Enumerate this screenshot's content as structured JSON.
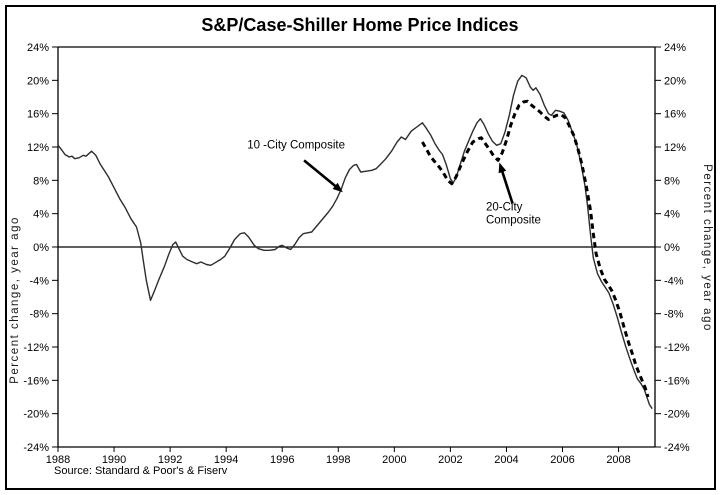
{
  "title": "S&P/Case-Shiller Home Price Indices",
  "chart_data": {
    "type": "line",
    "title": "S&P/Case-Shiller Home Price Indices",
    "ylabel_left": "Percent change, year ago",
    "ylabel_right": "Percent change, year ago",
    "source_note": "Source: Standard & Poor's & Fiserv",
    "x_range": [
      1988,
      2009.3
    ],
    "y_range": [
      -24,
      24
    ],
    "x_ticks": [
      1988,
      1990,
      1992,
      1994,
      1996,
      1998,
      2000,
      2002,
      2004,
      2006,
      2008
    ],
    "y_ticks": [
      24,
      20,
      16,
      12,
      8,
      4,
      0,
      -4,
      -8,
      -12,
      -16,
      -20,
      -24
    ],
    "y_tick_suffix": "%",
    "grid": false,
    "zero_line": true,
    "legend_position": "none",
    "line_color": "#000000",
    "series": [
      {
        "name": "10-City Composite",
        "style": "solid",
        "points": [
          [
            1988.0,
            12.2
          ],
          [
            1988.1,
            11.8
          ],
          [
            1988.25,
            11.1
          ],
          [
            1988.4,
            10.8
          ],
          [
            1988.5,
            10.9
          ],
          [
            1988.6,
            10.6
          ],
          [
            1988.75,
            10.7
          ],
          [
            1988.9,
            11.0
          ],
          [
            1989.0,
            10.9
          ],
          [
            1989.1,
            11.2
          ],
          [
            1989.2,
            11.5
          ],
          [
            1989.35,
            11.0
          ],
          [
            1989.5,
            10.0
          ],
          [
            1989.65,
            9.2
          ],
          [
            1989.8,
            8.4
          ],
          [
            1990.0,
            7.1
          ],
          [
            1990.2,
            5.8
          ],
          [
            1990.4,
            4.7
          ],
          [
            1990.6,
            3.4
          ],
          [
            1990.8,
            2.4
          ],
          [
            1990.95,
            0.5
          ],
          [
            1991.05,
            -1.8
          ],
          [
            1991.15,
            -4.0
          ],
          [
            1991.3,
            -6.4
          ],
          [
            1991.45,
            -5.2
          ],
          [
            1991.6,
            -3.9
          ],
          [
            1991.8,
            -2.3
          ],
          [
            1991.95,
            -0.9
          ],
          [
            1992.1,
            0.3
          ],
          [
            1992.2,
            0.6
          ],
          [
            1992.3,
            -0.1
          ],
          [
            1992.45,
            -1.1
          ],
          [
            1992.6,
            -1.5
          ],
          [
            1992.8,
            -1.8
          ],
          [
            1992.95,
            -2.0
          ],
          [
            1993.1,
            -1.8
          ],
          [
            1993.3,
            -2.1
          ],
          [
            1993.45,
            -2.2
          ],
          [
            1993.6,
            -1.9
          ],
          [
            1993.8,
            -1.5
          ],
          [
            1993.95,
            -1.1
          ],
          [
            1994.1,
            -0.3
          ],
          [
            1994.3,
            0.9
          ],
          [
            1994.5,
            1.6
          ],
          [
            1994.65,
            1.7
          ],
          [
            1994.8,
            1.2
          ],
          [
            1995.0,
            0.2
          ],
          [
            1995.15,
            -0.2
          ],
          [
            1995.35,
            -0.4
          ],
          [
            1995.55,
            -0.4
          ],
          [
            1995.75,
            -0.3
          ],
          [
            1995.9,
            0.1
          ],
          [
            1996.0,
            0.2
          ],
          [
            1996.15,
            -0.1
          ],
          [
            1996.3,
            -0.3
          ],
          [
            1996.45,
            0.3
          ],
          [
            1996.6,
            1.1
          ],
          [
            1996.75,
            1.6
          ],
          [
            1996.9,
            1.7
          ],
          [
            1997.05,
            1.8
          ],
          [
            1997.2,
            2.4
          ],
          [
            1997.35,
            3.0
          ],
          [
            1997.5,
            3.6
          ],
          [
            1997.65,
            4.2
          ],
          [
            1997.8,
            4.9
          ],
          [
            1997.95,
            5.8
          ],
          [
            1998.1,
            6.9
          ],
          [
            1998.25,
            8.3
          ],
          [
            1998.4,
            9.3
          ],
          [
            1998.55,
            9.8
          ],
          [
            1998.65,
            9.9
          ],
          [
            1998.8,
            9.0
          ],
          [
            1999.0,
            9.1
          ],
          [
            1999.2,
            9.2
          ],
          [
            1999.35,
            9.4
          ],
          [
            1999.5,
            9.9
          ],
          [
            1999.7,
            10.6
          ],
          [
            1999.9,
            11.5
          ],
          [
            2000.1,
            12.6
          ],
          [
            2000.25,
            13.2
          ],
          [
            2000.4,
            12.9
          ],
          [
            2000.6,
            13.9
          ],
          [
            2000.8,
            14.4
          ],
          [
            2001.0,
            14.9
          ],
          [
            2001.15,
            14.2
          ],
          [
            2001.3,
            13.4
          ],
          [
            2001.45,
            12.4
          ],
          [
            2001.6,
            11.6
          ],
          [
            2001.72,
            11.1
          ],
          [
            2001.85,
            9.9
          ],
          [
            2002.0,
            8.2
          ],
          [
            2002.1,
            7.7
          ],
          [
            2002.2,
            8.3
          ],
          [
            2002.35,
            9.9
          ],
          [
            2002.5,
            11.5
          ],
          [
            2002.65,
            12.7
          ],
          [
            2002.8,
            13.9
          ],
          [
            2002.95,
            14.9
          ],
          [
            2003.07,
            15.4
          ],
          [
            2003.2,
            14.7
          ],
          [
            2003.35,
            13.6
          ],
          [
            2003.5,
            12.7
          ],
          [
            2003.65,
            12.2
          ],
          [
            2003.8,
            12.4
          ],
          [
            2003.95,
            13.8
          ],
          [
            2004.1,
            15.8
          ],
          [
            2004.25,
            18.2
          ],
          [
            2004.4,
            19.9
          ],
          [
            2004.55,
            20.6
          ],
          [
            2004.7,
            20.3
          ],
          [
            2004.85,
            19.2
          ],
          [
            2004.95,
            18.8
          ],
          [
            2005.05,
            19.1
          ],
          [
            2005.2,
            18.3
          ],
          [
            2005.35,
            17.0
          ],
          [
            2005.5,
            16.0
          ],
          [
            2005.6,
            15.8
          ],
          [
            2005.75,
            16.4
          ],
          [
            2005.9,
            16.3
          ],
          [
            2006.05,
            16.1
          ],
          [
            2006.2,
            15.2
          ],
          [
            2006.35,
            13.8
          ],
          [
            2006.5,
            12.4
          ],
          [
            2006.65,
            10.2
          ],
          [
            2006.8,
            7.4
          ],
          [
            2006.9,
            4.8
          ],
          [
            2007.0,
            1.5
          ],
          [
            2007.1,
            -1.3
          ],
          [
            2007.25,
            -3.2
          ],
          [
            2007.4,
            -4.2
          ],
          [
            2007.5,
            -4.7
          ],
          [
            2007.65,
            -5.5
          ],
          [
            2007.8,
            -6.8
          ],
          [
            2007.95,
            -8.4
          ],
          [
            2008.1,
            -10.2
          ],
          [
            2008.25,
            -11.9
          ],
          [
            2008.4,
            -13.4
          ],
          [
            2008.55,
            -14.8
          ],
          [
            2008.67,
            -15.8
          ],
          [
            2008.8,
            -16.4
          ],
          [
            2008.92,
            -17.1
          ],
          [
            2009.0,
            -17.9
          ],
          [
            2009.1,
            -18.9
          ],
          [
            2009.2,
            -19.4
          ]
        ]
      },
      {
        "name": "20-City Composite",
        "style": "dashed",
        "points": [
          [
            2001.0,
            12.6
          ],
          [
            2001.15,
            11.7
          ],
          [
            2001.3,
            10.8
          ],
          [
            2001.45,
            10.2
          ],
          [
            2001.6,
            9.6
          ],
          [
            2001.75,
            8.9
          ],
          [
            2001.9,
            8.0
          ],
          [
            2002.05,
            7.6
          ],
          [
            2002.2,
            8.4
          ],
          [
            2002.4,
            10.0
          ],
          [
            2002.6,
            11.4
          ],
          [
            2002.8,
            12.6
          ],
          [
            2003.0,
            13.0
          ],
          [
            2003.1,
            13.1
          ],
          [
            2003.25,
            12.4
          ],
          [
            2003.4,
            11.7
          ],
          [
            2003.55,
            10.9
          ],
          [
            2003.7,
            10.4
          ],
          [
            2003.85,
            11.3
          ],
          [
            2004.0,
            12.8
          ],
          [
            2004.15,
            14.6
          ],
          [
            2004.3,
            16.0
          ],
          [
            2004.45,
            17.0
          ],
          [
            2004.6,
            17.4
          ],
          [
            2004.75,
            17.5
          ],
          [
            2004.9,
            17.0
          ],
          [
            2005.05,
            16.6
          ],
          [
            2005.2,
            16.2
          ],
          [
            2005.35,
            15.7
          ],
          [
            2005.5,
            15.3
          ],
          [
            2005.65,
            15.6
          ],
          [
            2005.8,
            15.8
          ],
          [
            2005.95,
            15.9
          ],
          [
            2006.1,
            15.5
          ],
          [
            2006.25,
            14.5
          ],
          [
            2006.4,
            13.4
          ],
          [
            2006.55,
            11.8
          ],
          [
            2006.7,
            9.8
          ],
          [
            2006.85,
            7.3
          ],
          [
            2007.0,
            4.4
          ],
          [
            2007.1,
            1.6
          ],
          [
            2007.2,
            -0.8
          ],
          [
            2007.35,
            -2.6
          ],
          [
            2007.5,
            -3.9
          ],
          [
            2007.6,
            -4.4
          ],
          [
            2007.75,
            -5.2
          ],
          [
            2007.9,
            -6.4
          ],
          [
            2008.05,
            -7.9
          ],
          [
            2008.2,
            -9.7
          ],
          [
            2008.35,
            -11.4
          ],
          [
            2008.5,
            -12.9
          ],
          [
            2008.62,
            -14.2
          ],
          [
            2008.75,
            -15.3
          ],
          [
            2008.85,
            -16.1
          ],
          [
            2008.95,
            -16.9
          ],
          [
            2009.05,
            -18.0
          ]
        ]
      }
    ],
    "annotations": [
      {
        "id": "10-city-composite",
        "lines": [
          "10 -City Composite"
        ],
        "x": 1994.75,
        "y": 11.8,
        "arrow_from": [
          1996.78,
          10.4
        ],
        "arrow_to": [
          1998.08,
          6.8
        ]
      },
      {
        "id": "20-city-composite",
        "lines": [
          "20-City",
          "Composite"
        ],
        "x": 2003.27,
        "y": 4.4,
        "arrow_from": [
          2004.22,
          5.2
        ],
        "arrow_to": [
          2003.78,
          9.8
        ]
      }
    ]
  }
}
